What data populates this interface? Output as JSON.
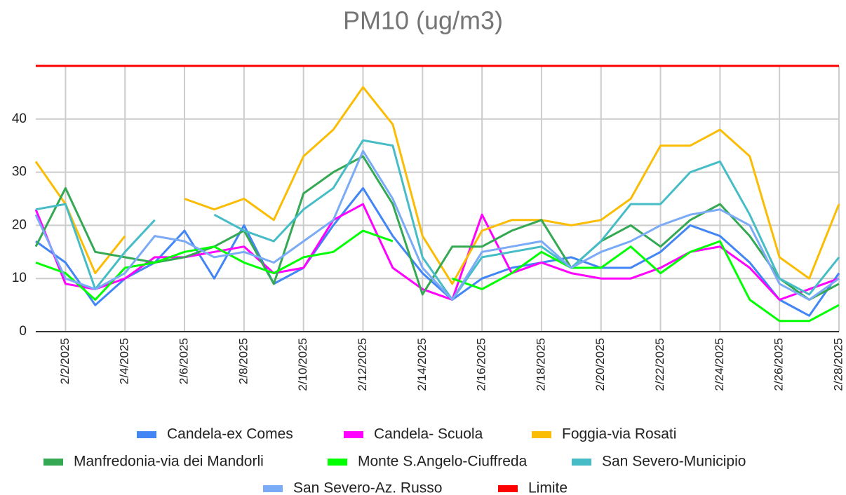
{
  "chart_data": {
    "type": "line",
    "title": "PM10 (ug/m3)",
    "categories": [
      null,
      "2/2/2025",
      null,
      "2/4/2025",
      null,
      "2/6/2025",
      null,
      "2/8/2025",
      null,
      "2/10/2025",
      null,
      "2/12/2025",
      null,
      "2/14/2025",
      null,
      "2/16/2025",
      null,
      "2/18/2025",
      null,
      "2/20/2025",
      null,
      "2/22/2025",
      null,
      "2/24/2025",
      null,
      "2/26/2025",
      null,
      "2/28/2025"
    ],
    "series": [
      {
        "name": "Candela-ex Comes",
        "color": "#4285f4",
        "values": [
          17,
          13,
          5,
          10,
          13,
          19,
          10,
          20,
          9,
          12,
          20,
          27,
          18,
          11,
          6,
          10,
          12,
          13,
          14,
          12,
          12,
          15,
          20,
          18,
          13,
          6,
          3,
          11
        ]
      },
      {
        "name": "Candela- Scuola",
        "color": "#ff00ff",
        "values": [
          23,
          9,
          8,
          10,
          14,
          14,
          15,
          16,
          11,
          12,
          21,
          24,
          12,
          8,
          6,
          22,
          11,
          13,
          11,
          10,
          10,
          12,
          15,
          16,
          12,
          6,
          8,
          10
        ]
      },
      {
        "name": "Foggia-via Rosati",
        "color": "#fbbc04",
        "values": [
          32,
          24,
          11,
          18,
          null,
          25,
          23,
          25,
          21,
          33,
          38,
          46,
          39,
          18,
          9,
          19,
          21,
          21,
          20,
          21,
          25,
          35,
          35,
          38,
          33,
          14,
          10,
          24
        ]
      },
      {
        "name": "Manfredonia-via dei Mandorli",
        "color": "#34a853",
        "values": [
          16,
          27,
          15,
          14,
          13,
          14,
          16,
          19,
          9,
          26,
          30,
          33,
          24,
          7,
          16,
          16,
          19,
          21,
          12,
          17,
          20,
          16,
          21,
          24,
          18,
          10,
          6,
          9
        ]
      },
      {
        "name": "Monte S.Angelo-Ciuffreda",
        "color": "#00ff00",
        "values": [
          13,
          11,
          6,
          12,
          13,
          15,
          16,
          13,
          11,
          14,
          15,
          19,
          17,
          null,
          10,
          8,
          11,
          15,
          12,
          12,
          16,
          11,
          15,
          17,
          6,
          2,
          2,
          5
        ]
      },
      {
        "name": "San Severo-Municipio",
        "color": "#46bdc6",
        "values": [
          23,
          24,
          8,
          15,
          21,
          null,
          22,
          19,
          17,
          23,
          27,
          36,
          35,
          14,
          6,
          14,
          15,
          16,
          12,
          17,
          24,
          24,
          30,
          32,
          22,
          10,
          7,
          14
        ]
      },
      {
        "name": "San Severo-Az. Russo",
        "color": "#7baaf7",
        "values": [
          22,
          10,
          8,
          11,
          18,
          17,
          14,
          15,
          13,
          17,
          21,
          34,
          25,
          12,
          6,
          15,
          16,
          17,
          12,
          15,
          17,
          20,
          22,
          23,
          20,
          9,
          6,
          10
        ]
      },
      {
        "name": "Limite",
        "color": "#ff0000",
        "values": [
          50,
          50,
          50,
          50,
          50,
          50,
          50,
          50,
          50,
          50,
          50,
          50,
          50,
          50,
          50,
          50,
          50,
          50,
          50,
          50,
          50,
          50,
          50,
          50,
          50,
          50,
          50,
          50
        ]
      }
    ],
    "ylim": [
      0,
      50
    ],
    "yticks": [
      0,
      10,
      20,
      30,
      40
    ],
    "grid": true
  }
}
